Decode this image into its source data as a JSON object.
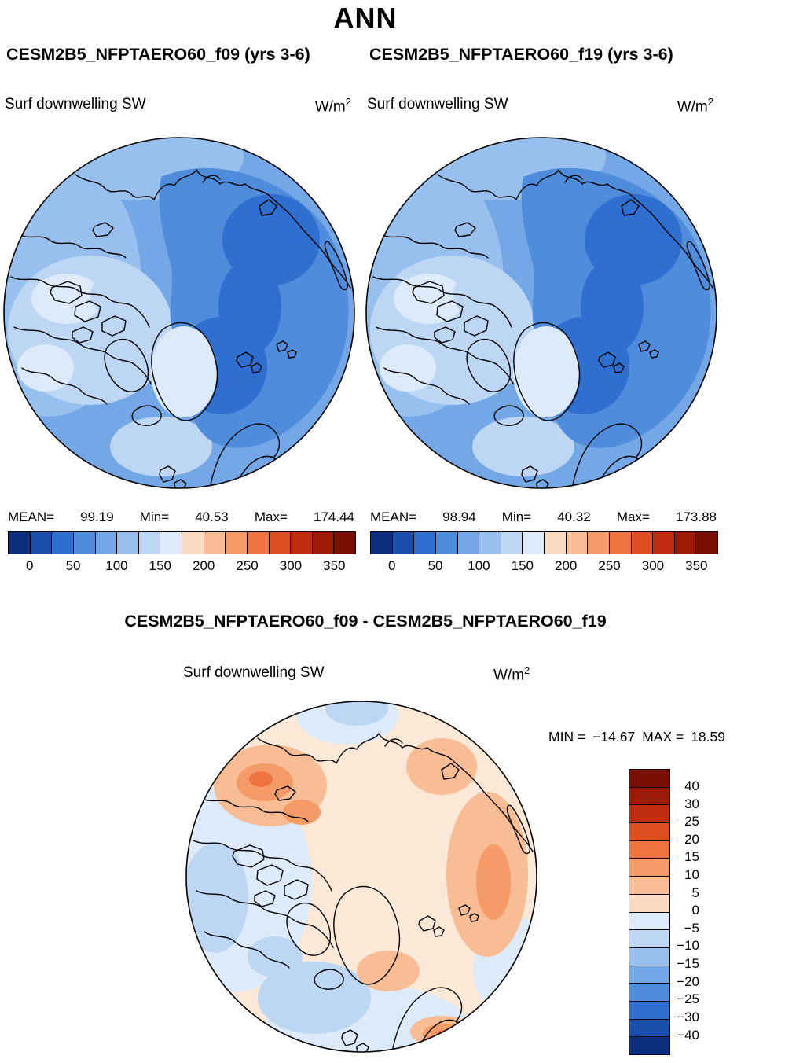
{
  "header": {
    "title": "ANN",
    "left_run": "CESM2B5_NFPTAERO60_f09 (yrs 3-6)",
    "right_run": "CESM2B5_NFPTAERO60_f19 (yrs 3-6)"
  },
  "units": {
    "base": "W/m",
    "exp": "2"
  },
  "panels": [
    {
      "field": "Surf downwelling SW",
      "stats": {
        "mean_label": "MEAN=",
        "mean": "99.19",
        "min_label": "Min=",
        "min": "40.53",
        "max_label": "Max=",
        "max": "174.44"
      }
    },
    {
      "field": "Surf downwelling SW",
      "stats": {
        "mean_label": "MEAN=",
        "mean": "98.94",
        "min_label": "Min=",
        "min": "40.32",
        "max_label": "Max=",
        "max": "173.88"
      }
    }
  ],
  "colorbar": {
    "ticks": [
      "0",
      "50",
      "100",
      "150",
      "200",
      "250",
      "300",
      "350"
    ],
    "colors": [
      "#0b2f7d",
      "#1a4fae",
      "#2f6fd0",
      "#4f8cdc",
      "#74a7e6",
      "#98c0ee",
      "#bcd6f4",
      "#ddeafa",
      "#fbdcc3",
      "#f8bd95",
      "#f59b67",
      "#ee7340",
      "#dd4f22",
      "#c02e0f",
      "#9c1a06",
      "#7a1003"
    ]
  },
  "diff": {
    "title": "CESM2B5_NFPTAERO60_f09 - CESM2B5_NFPTAERO60_f19",
    "field": "Surf downwelling SW",
    "min_label": "MIN =",
    "min": "−14.67",
    "max_label": "MAX =",
    "max": "18.59",
    "colorbar": {
      "labels": [
        "40",
        "30",
        "25",
        "20",
        "15",
        "10",
        "5",
        "0",
        "−5",
        "−10",
        "−15",
        "−20",
        "−25",
        "−30",
        "−40"
      ],
      "colors": [
        "#7a1003",
        "#9c1a06",
        "#c02e0f",
        "#dd4f22",
        "#ee7340",
        "#f59b67",
        "#f8bd95",
        "#fbdcc3",
        "#ddeafa",
        "#bcd6f4",
        "#98c0ee",
        "#74a7e6",
        "#4f8cdc",
        "#2f6fd0",
        "#1a4fae",
        "#0b2f7d"
      ]
    }
  },
  "chart_data": [
    {
      "type": "heatmap",
      "title": "Surf downwelling SW — CESM2B5_NFPTAERO60_f09 (yrs 3-6)",
      "units": "W/m2",
      "projection": "north polar stereographic",
      "stats": {
        "mean": 99.19,
        "min": 40.53,
        "max": 174.44
      },
      "levels": [
        0,
        25,
        50,
        75,
        100,
        125,
        150,
        175,
        200,
        225,
        250,
        275,
        300,
        325,
        350
      ],
      "colorbar_ticks": [
        0,
        50,
        100,
        150,
        200,
        250,
        300,
        350
      ],
      "legend_position": "bottom"
    },
    {
      "type": "heatmap",
      "title": "Surf downwelling SW — CESM2B5_NFPTAERO60_f19 (yrs 3-6)",
      "units": "W/m2",
      "projection": "north polar stereographic",
      "stats": {
        "mean": 98.94,
        "min": 40.32,
        "max": 173.88
      },
      "levels": [
        0,
        25,
        50,
        75,
        100,
        125,
        150,
        175,
        200,
        225,
        250,
        275,
        300,
        325,
        350
      ],
      "colorbar_ticks": [
        0,
        50,
        100,
        150,
        200,
        250,
        300,
        350
      ],
      "legend_position": "bottom"
    },
    {
      "type": "heatmap",
      "title": "Surf downwelling SW — CESM2B5_NFPTAERO60_f09 minus CESM2B5_NFPTAERO60_f19",
      "units": "W/m2",
      "projection": "north polar stereographic",
      "stats": {
        "min": -14.67,
        "max": 18.59
      },
      "levels": [
        -40,
        -30,
        -25,
        -20,
        -15,
        -10,
        -5,
        0,
        5,
        10,
        15,
        20,
        25,
        30,
        40
      ],
      "legend_position": "right"
    }
  ]
}
